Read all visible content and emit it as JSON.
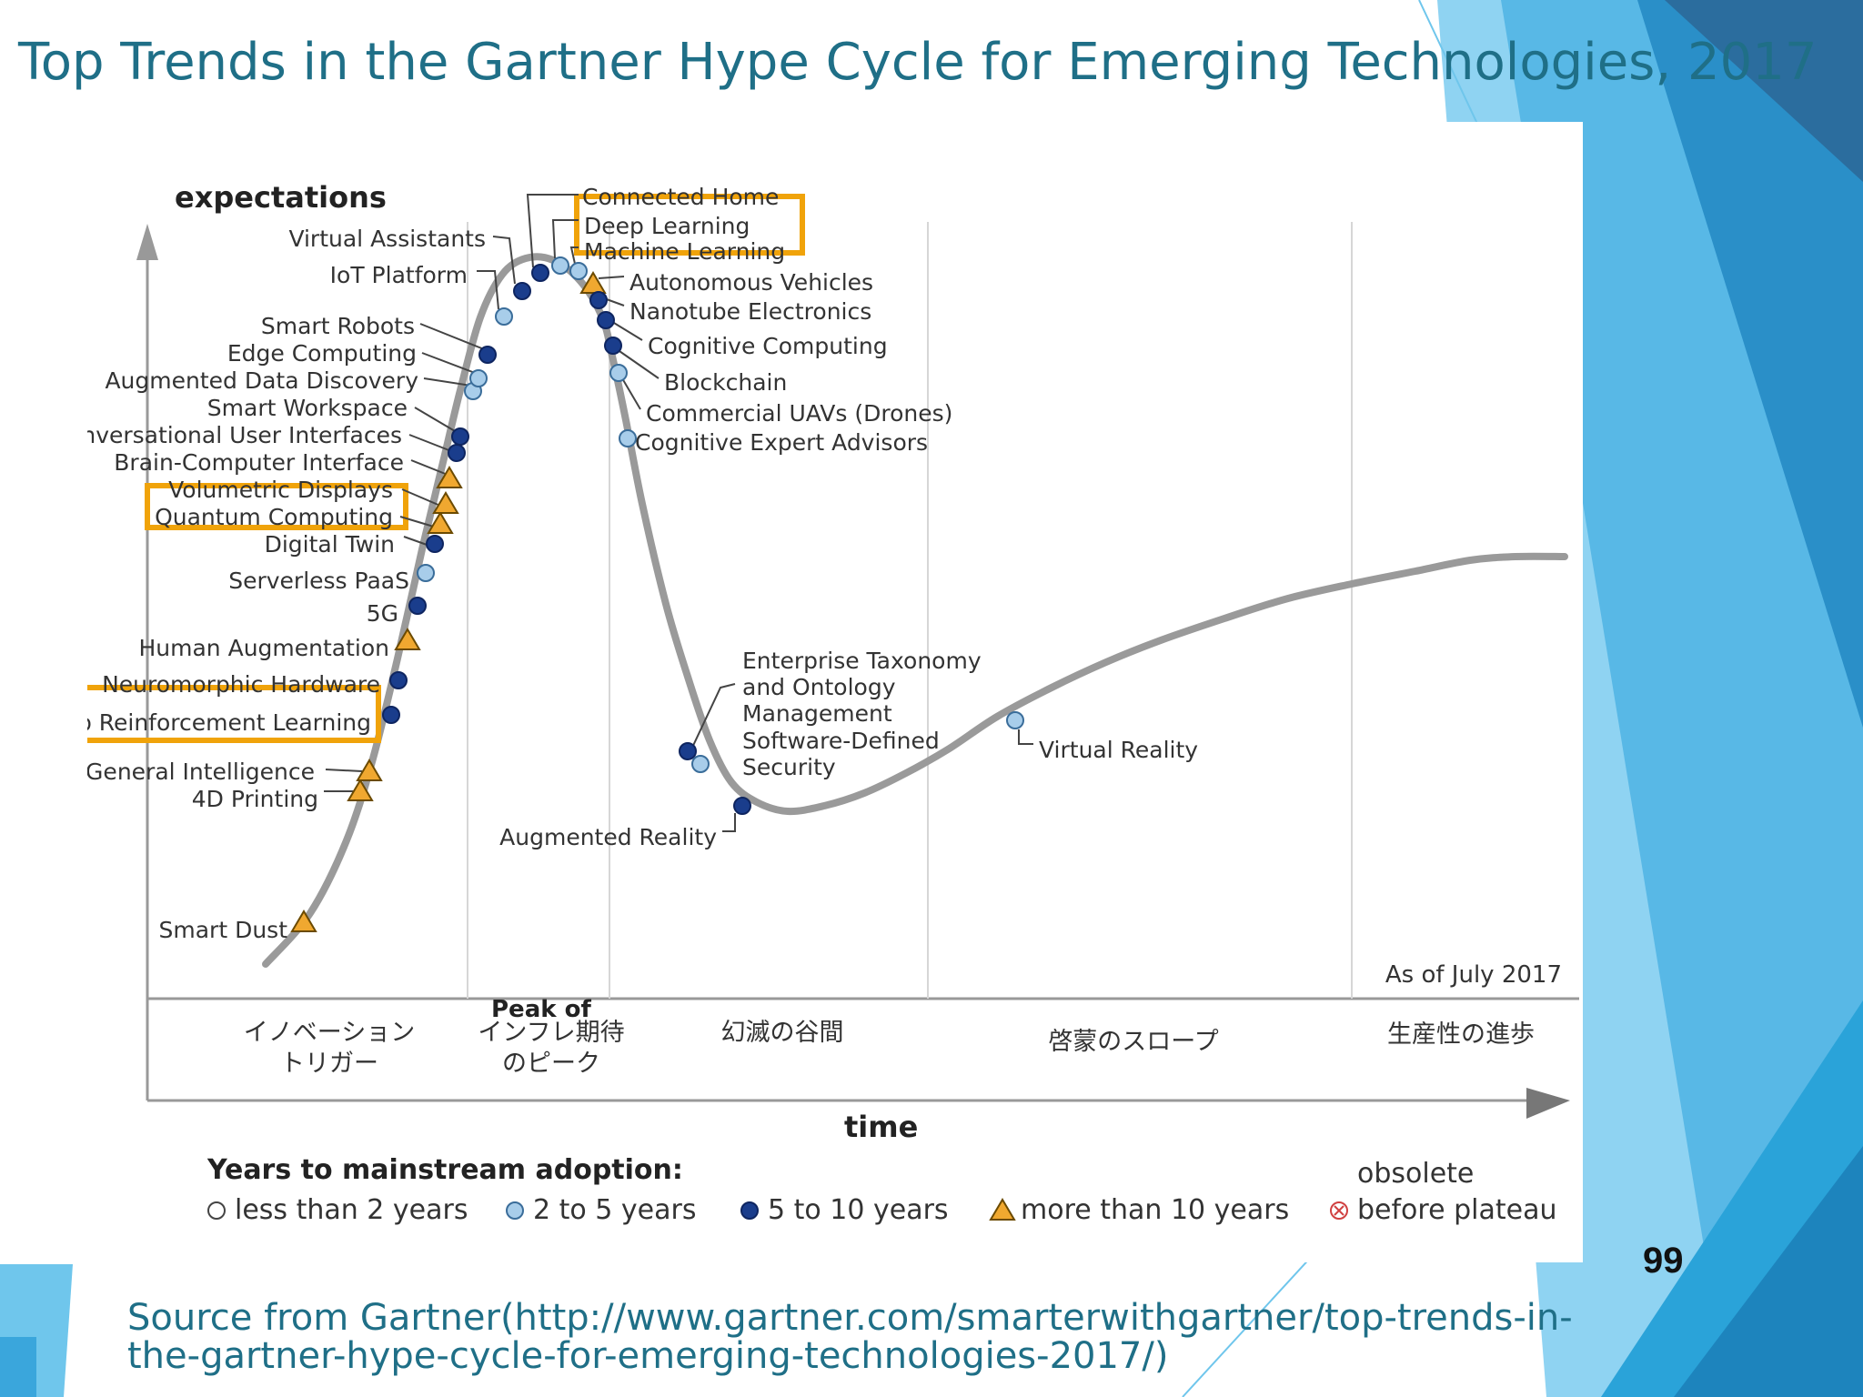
{
  "slide": {
    "title": "Top Trends in the Gartner Hype Cycle for Emerging Technologies, 2017",
    "page_number": "99",
    "source_line_1": "Source from Gartner(http://www.gartner.com/smarterwithgartner/top-trends-in-",
    "source_line_2": "the-gartner-hype-cycle-for-emerging-technologies-2017/)",
    "colors": {
      "title": "#1f6f87",
      "accent_blue": "#2a9fd8",
      "highlight_box": "#f0a30a"
    }
  },
  "chart_data": {
    "type": "line",
    "title": "",
    "ylabel": "expectations",
    "xlabel": "time",
    "as_of": "As of July 2017",
    "phases": [
      "イノベーション\nトリガー",
      "インフレ期待\nのピーク",
      "幻滅の谷間",
      "啓蒙のスロープ",
      "生産性の進歩"
    ],
    "peak_label_partial": "Peak of",
    "legend_title": "Years to mainstream adoption:",
    "legend": [
      {
        "category": "lt2",
        "label": "less than 2 years",
        "marker": "circle-open"
      },
      {
        "category": "2to5",
        "label": "2 to 5 years",
        "marker": "circle-light"
      },
      {
        "category": "5to10",
        "label": "5 to 10 years",
        "marker": "circle-dark"
      },
      {
        "category": "gt10",
        "label": "more than 10 years",
        "marker": "triangle"
      },
      {
        "category": "obsolete",
        "label": "obsolete\nbefore plateau",
        "marker": "circle-x"
      }
    ],
    "marker_colors": {
      "lt2": "#ffffff",
      "2to5": "#a8cdea",
      "5to10": "#1a3d8c",
      "gt10": "#f0a830",
      "obsolete": "#ffffff"
    },
    "technologies": [
      {
        "name": "Smart Dust",
        "category": "gt10"
      },
      {
        "name": "4D Printing",
        "category": "gt10"
      },
      {
        "name": "Artificial General Intelligence",
        "category": "gt10"
      },
      {
        "name": "Deep Reinforcement Learning",
        "category": "5to10",
        "highlighted": true
      },
      {
        "name": "Neuromorphic Hardware",
        "category": "5to10"
      },
      {
        "name": "Human Augmentation",
        "category": "gt10"
      },
      {
        "name": "5G",
        "category": "5to10"
      },
      {
        "name": "Serverless PaaS",
        "category": "2to5"
      },
      {
        "name": "Digital Twin",
        "category": "5to10"
      },
      {
        "name": "Quantum Computing",
        "category": "gt10",
        "highlighted": true
      },
      {
        "name": "Volumetric Displays",
        "category": "gt10"
      },
      {
        "name": "Brain-Computer Interface",
        "category": "gt10"
      },
      {
        "name": "Conversational User Interfaces",
        "category": "5to10"
      },
      {
        "name": "Smart Workspace",
        "category": "5to10"
      },
      {
        "name": "Augmented Data Discovery",
        "category": "2to5"
      },
      {
        "name": "Edge Computing",
        "category": "2to5"
      },
      {
        "name": "Smart Robots",
        "category": "5to10"
      },
      {
        "name": "IoT Platform",
        "category": "2to5"
      },
      {
        "name": "Virtual Assistants",
        "category": "5to10"
      },
      {
        "name": "Connected Home",
        "category": "5to10"
      },
      {
        "name": "Deep Learning",
        "category": "2to5",
        "highlighted": true
      },
      {
        "name": "Machine Learning",
        "category": "2to5",
        "highlighted": true
      },
      {
        "name": "Autonomous Vehicles",
        "category": "gt10"
      },
      {
        "name": "Nanotube Electronics",
        "category": "5to10"
      },
      {
        "name": "Cognitive Computing",
        "category": "5to10"
      },
      {
        "name": "Blockchain",
        "category": "5to10"
      },
      {
        "name": "Commercial UAVs (Drones)",
        "category": "2to5"
      },
      {
        "name": "Cognitive Expert Advisors",
        "category": "2to5"
      },
      {
        "name": "Enterprise Taxonomy and Ontology Management",
        "category": "5to10"
      },
      {
        "name": "Software-Defined Security",
        "category": "2to5"
      },
      {
        "name": "Augmented Reality",
        "category": "5to10"
      },
      {
        "name": "Virtual Reality",
        "category": "2to5"
      }
    ]
  }
}
